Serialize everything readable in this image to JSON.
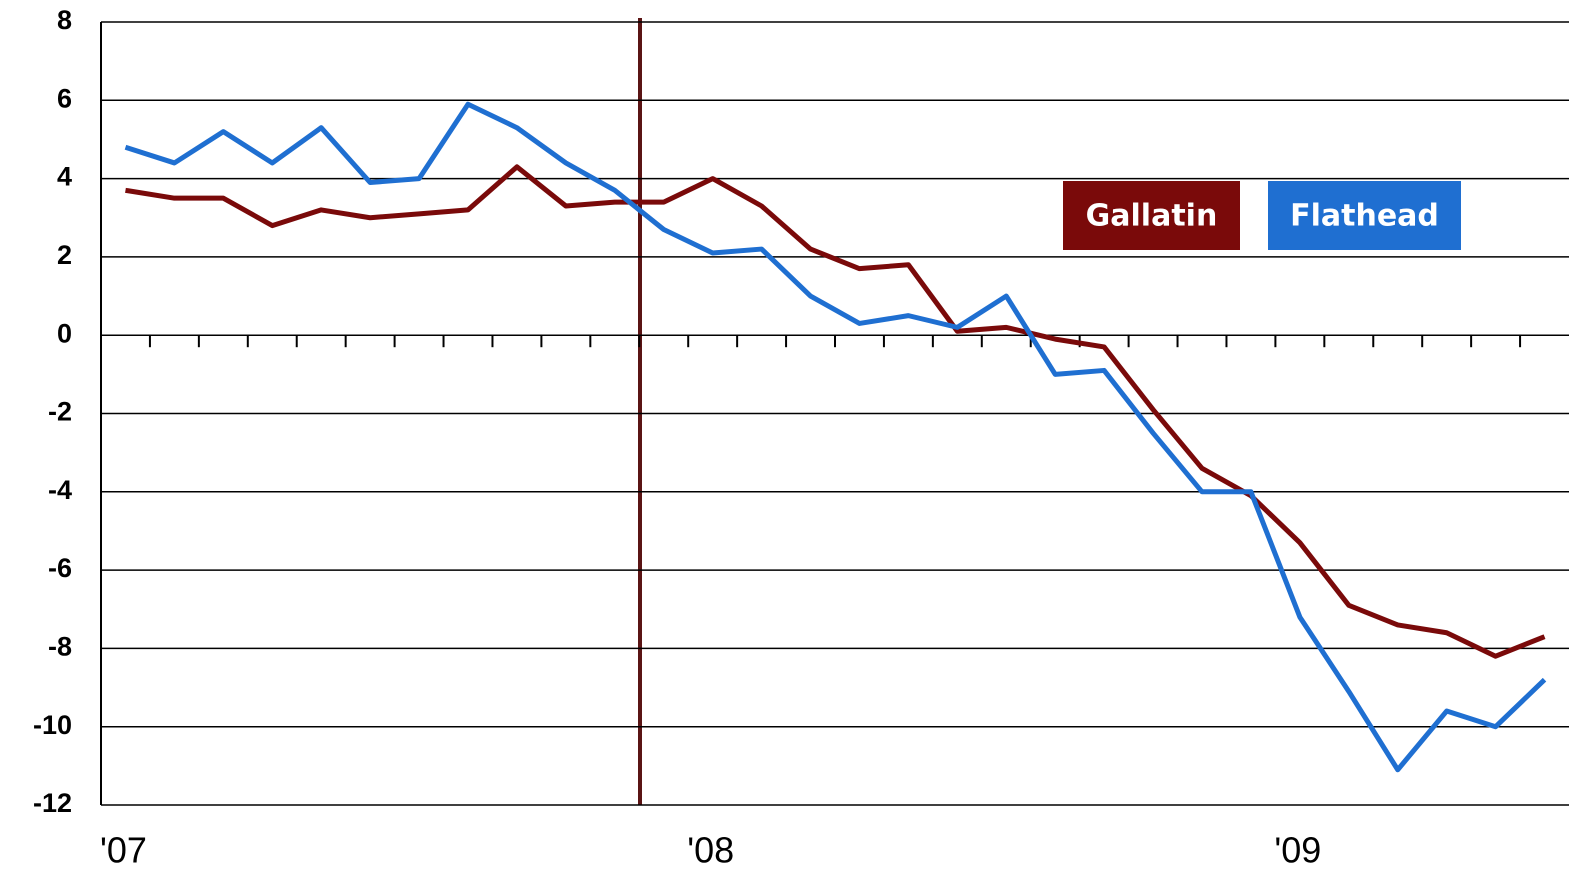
{
  "chart_data": {
    "type": "line",
    "categories": [
      "'07",
      null,
      null,
      null,
      null,
      null,
      null,
      null,
      null,
      null,
      null,
      null,
      "'08",
      null,
      null,
      null,
      null,
      null,
      null,
      null,
      null,
      null,
      null,
      null,
      "'09",
      null,
      null,
      null,
      null,
      null
    ],
    "series": [
      {
        "name": "Gallatin",
        "color": "#7a0a0a",
        "values": [
          3.7,
          3.5,
          3.5,
          2.8,
          3.2,
          3.0,
          3.1,
          3.2,
          4.3,
          3.3,
          3.4,
          3.4,
          4.0,
          3.3,
          2.2,
          1.7,
          1.8,
          0.1,
          0.2,
          -0.1,
          -0.3,
          -1.9,
          -3.4,
          -4.1,
          -5.3,
          -6.9,
          -7.4,
          -7.6,
          -8.2,
          -7.7
        ]
      },
      {
        "name": "Flathead",
        "color": "#1f6fd1",
        "values": [
          4.8,
          4.4,
          5.2,
          4.4,
          5.3,
          3.9,
          4.0,
          5.9,
          5.3,
          4.4,
          3.7,
          2.7,
          2.1,
          2.2,
          1.0,
          0.3,
          0.5,
          0.2,
          1.0,
          -1.0,
          -0.9,
          -2.5,
          -4.0,
          -4.0,
          -7.2,
          -9.1,
          -11.1,
          -9.6,
          -10.0,
          -8.8
        ]
      }
    ],
    "ylim": [
      -12,
      8
    ],
    "yticks": [
      -12,
      -10,
      -8,
      -6,
      -4,
      -2,
      0,
      2,
      4,
      6,
      8
    ],
    "grid": true
  }
}
